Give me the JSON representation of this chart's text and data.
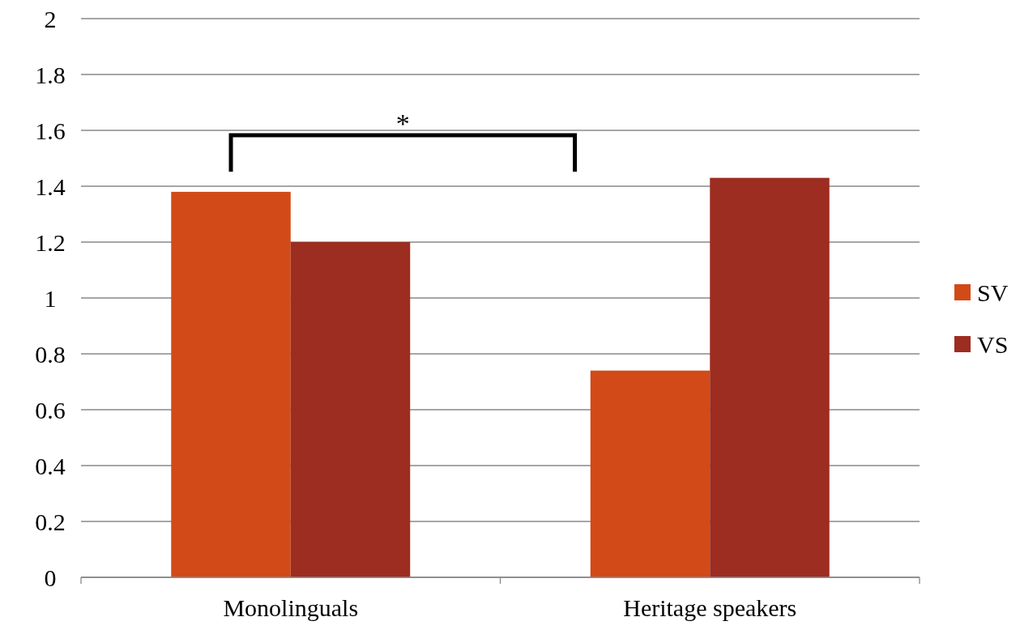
{
  "chart_data": {
    "type": "bar",
    "categories": [
      "Monolinguals",
      "Heritage speakers"
    ],
    "series": [
      {
        "name": "SV",
        "color": "#d24a18",
        "values": [
          1.38,
          0.74
        ]
      },
      {
        "name": "VS",
        "color": "#9c2d20",
        "values": [
          1.2,
          1.43
        ]
      }
    ],
    "ylim": [
      0,
      2
    ],
    "yticks": [
      0,
      0.2,
      0.4,
      0.6,
      0.8,
      1,
      1.2,
      1.4,
      1.6,
      1.8,
      2
    ],
    "grid": "y",
    "legend": "right",
    "annotations": [
      "*"
    ]
  }
}
